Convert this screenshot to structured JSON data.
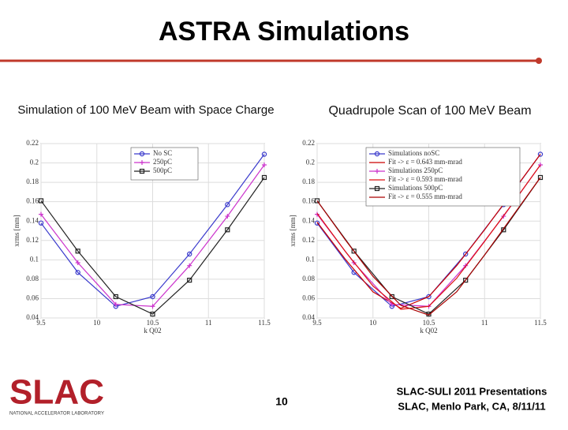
{
  "slide": {
    "title": "ASTRA Simulations",
    "page_number": "10",
    "logo": "SLAC",
    "logo_subtitle": "NATIONAL ACCELERATOR LABORATORY",
    "footer": [
      "SLAC-SULI 2011 Presentations",
      "SLAC, Menlo Park, CA, 8/11/11"
    ]
  },
  "chart_data": [
    {
      "type": "line",
      "title": "Simulation of 100 MeV Beam with Space Charge",
      "xlabel": "k Q02",
      "ylabel": "xrms [mm]",
      "xlim": [
        9.5,
        11.5
      ],
      "xticks": [
        9.5,
        10,
        10.5,
        11,
        11.5
      ],
      "ylim": [
        0.04,
        0.22
      ],
      "yticks": [
        0.04,
        0.06,
        0.08,
        0.1,
        0.12,
        0.14,
        0.16,
        0.18,
        0.2,
        0.22
      ],
      "grid": true,
      "legend": "upper center",
      "x": [
        9.5,
        9.83,
        10.17,
        10.5,
        10.83,
        11.17,
        11.5
      ],
      "series": [
        {
          "name": "No SC",
          "color": "#3a3acc",
          "marker": "o",
          "values": [
            0.138,
            0.087,
            0.052,
            0.062,
            0.106,
            0.157,
            0.209
          ]
        },
        {
          "name": "250pC",
          "color": "#cc33cc",
          "marker": "+",
          "values": [
            0.147,
            0.097,
            0.054,
            0.052,
            0.094,
            0.145,
            0.198
          ]
        },
        {
          "name": "500pC",
          "color": "#222222",
          "marker": "s",
          "values": [
            0.161,
            0.109,
            0.062,
            0.044,
            0.079,
            0.131,
            0.185
          ]
        }
      ]
    },
    {
      "type": "line",
      "title": "Quadrupole Scan of 100 MeV Beam",
      "xlabel": "k Q02",
      "ylabel": "xrms [mm]",
      "xlim": [
        9.5,
        11.5
      ],
      "xticks": [
        9.5,
        10,
        10.5,
        11,
        11.5
      ],
      "ylim": [
        0.04,
        0.22
      ],
      "yticks": [
        0.04,
        0.06,
        0.08,
        0.1,
        0.12,
        0.14,
        0.16,
        0.18,
        0.2,
        0.22
      ],
      "grid": true,
      "legend": "upper left",
      "series": [
        {
          "name": "Simulations noSC",
          "color": "#3a3acc",
          "marker": "o",
          "x": [
            9.5,
            9.83,
            10.17,
            10.5,
            10.83,
            11.17,
            11.5
          ],
          "values": [
            0.138,
            0.087,
            0.052,
            0.062,
            0.106,
            0.157,
            0.209
          ]
        },
        {
          "name": "Fit -> ε = 0.643 mm-mrad",
          "color": "#cc0000",
          "x": [
            9.5,
            9.75,
            10,
            10.25,
            10.5,
            10.75,
            11,
            11.25,
            11.5
          ],
          "values": [
            0.139,
            0.101,
            0.067,
            0.05,
            0.062,
            0.094,
            0.131,
            0.17,
            0.209
          ]
        },
        {
          "name": "Simulations 250pC",
          "color": "#cc33cc",
          "marker": "+",
          "x": [
            9.5,
            9.83,
            10.17,
            10.5,
            10.83,
            11.17,
            11.5
          ],
          "values": [
            0.147,
            0.097,
            0.054,
            0.052,
            0.094,
            0.145,
            0.198
          ]
        },
        {
          "name": "Fit -> ε = 0.593 mm-mrad",
          "color": "#dd1111",
          "x": [
            9.5,
            9.75,
            10,
            10.25,
            10.5,
            10.75,
            11,
            11.25,
            11.5
          ],
          "values": [
            0.148,
            0.109,
            0.073,
            0.049,
            0.052,
            0.081,
            0.119,
            0.158,
            0.198
          ]
        },
        {
          "name": "Simulations 500pC",
          "color": "#222222",
          "marker": "s",
          "x": [
            9.5,
            9.83,
            10.17,
            10.5,
            10.83,
            11.17,
            11.5
          ],
          "values": [
            0.161,
            0.109,
            0.062,
            0.044,
            0.079,
            0.131,
            0.185
          ]
        },
        {
          "name": "Fit -> ε = 0.555 mm-mrad",
          "color": "#aa0000",
          "x": [
            9.5,
            9.75,
            10,
            10.25,
            10.5,
            10.75,
            11,
            11.25,
            11.5
          ],
          "values": [
            0.161,
            0.121,
            0.083,
            0.053,
            0.043,
            0.067,
            0.105,
            0.145,
            0.185
          ]
        }
      ]
    }
  ]
}
